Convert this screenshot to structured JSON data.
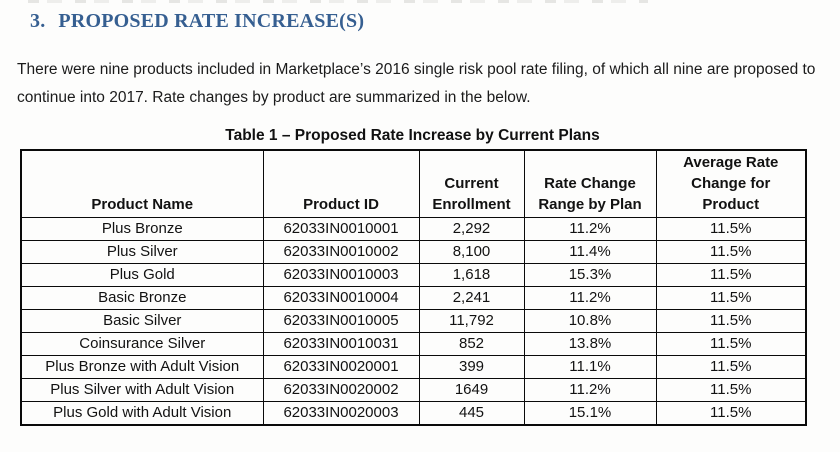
{
  "colors": {
    "heading_blue": "#365f91",
    "body_text": "#1b1b1b",
    "table_border": "#0a0a0a",
    "page_background": "#fdfdfc"
  },
  "heading": {
    "number": "3.",
    "title": "PROPOSED RATE INCREASE(S)"
  },
  "intro": "There were nine products included in Marketplace’s 2016 single risk pool rate filing, of which all nine are proposed to continue into 2017. Rate changes by product are summarized in the below.",
  "table": {
    "caption": "Table 1 – Proposed Rate Increase by Current Plans",
    "columns": [
      "Product Name",
      "Product ID",
      "Current\nEnrollment",
      "Rate Change\nRange by Plan",
      "Average Rate\nChange for\nProduct"
    ],
    "rows": [
      [
        "Plus Bronze",
        "62033IN0010001",
        "2,292",
        "11.2%",
        "11.5%"
      ],
      [
        "Plus Silver",
        "62033IN0010002",
        "8,100",
        "11.4%",
        "11.5%"
      ],
      [
        "Plus Gold",
        "62033IN0010003",
        "1,618",
        "15.3%",
        "11.5%"
      ],
      [
        "Basic Bronze",
        "62033IN0010004",
        "2,241",
        "11.2%",
        "11.5%"
      ],
      [
        "Basic Silver",
        "62033IN0010005",
        "11,792",
        "10.8%",
        "11.5%"
      ],
      [
        "Coinsurance Silver",
        "62033IN0010031",
        "852",
        "13.8%",
        "11.5%"
      ],
      [
        "Plus Bronze with Adult Vision",
        "62033IN0020001",
        "399",
        "11.1%",
        "11.5%"
      ],
      [
        "Plus Silver with Adult Vision",
        "62033IN0020002",
        "1649",
        "11.2%",
        "11.5%"
      ],
      [
        "Plus Gold with Adult Vision",
        "62033IN0020003",
        "445",
        "15.1%",
        "11.5%"
      ]
    ]
  }
}
